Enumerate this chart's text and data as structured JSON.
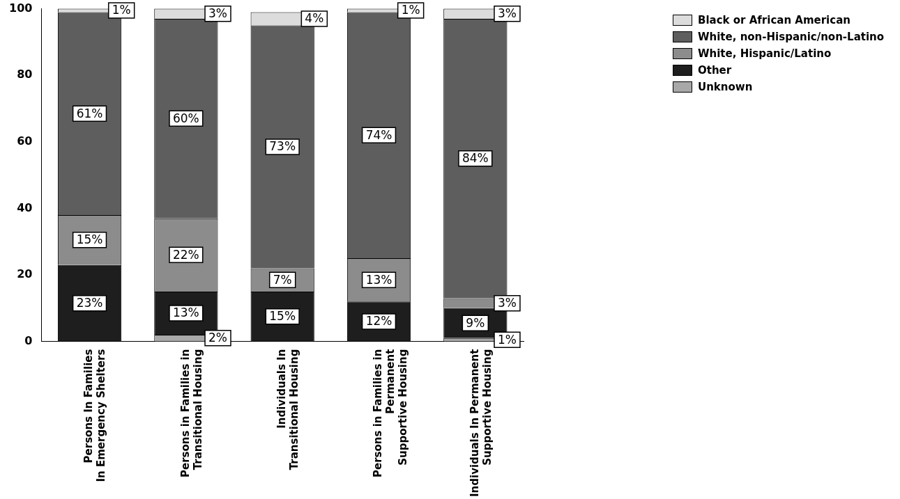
{
  "chart_data": {
    "type": "bar",
    "stacked": true,
    "legend": "top right",
    "data_labels": true,
    "categories": [
      "Persons In Families\nIn Emergency Shelters",
      "Persons in Families in\nTransitional Housing",
      "Individuals In\nTransitional Housing",
      "Persons in Families in\nPermanent\nSupportive Housing",
      "Individuals In Permanent\nSupportive Housing"
    ],
    "ylim": [
      0,
      100
    ],
    "yticks": [
      0,
      20,
      40,
      60,
      80,
      100
    ],
    "series": [
      {
        "name": "Unknown",
        "color": "#a8a8a8",
        "values": [
          null,
          2,
          null,
          null,
          1
        ],
        "value_labels": [
          null,
          "2%",
          null,
          null,
          "1%"
        ]
      },
      {
        "name": "Other",
        "color": "#1e1e1e",
        "values": [
          23,
          13,
          15,
          12,
          9
        ],
        "value_labels": [
          "23%",
          "13%",
          "15%",
          "12%",
          "9%"
        ]
      },
      {
        "name": "White, Hispanic/Latino",
        "color": "#8c8c8c",
        "values": [
          15,
          22,
          7,
          13,
          3
        ],
        "value_labels": [
          "15%",
          "22%",
          "7%",
          "13%",
          "3%"
        ]
      },
      {
        "name": "White, non-Hispanic/non-Latino",
        "color": "#5e5e5e",
        "values": [
          61,
          60,
          73,
          74,
          84
        ],
        "value_labels": [
          "61%",
          "60%",
          "73%",
          "74%",
          "84%"
        ]
      },
      {
        "name": "Black or African American",
        "color": "#dcdcdc",
        "values": [
          1,
          3,
          4,
          1,
          3
        ],
        "value_labels": [
          "1%",
          "3%",
          "4%",
          "1%",
          "3%"
        ]
      }
    ]
  }
}
